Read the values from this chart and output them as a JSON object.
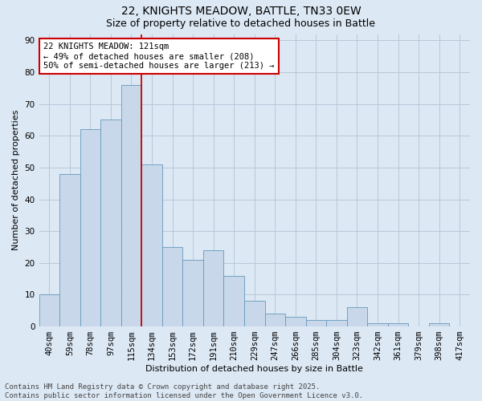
{
  "title1": "22, KNIGHTS MEADOW, BATTLE, TN33 0EW",
  "title2": "Size of property relative to detached houses in Battle",
  "xlabel": "Distribution of detached houses by size in Battle",
  "ylabel": "Number of detached properties",
  "categories": [
    "40sqm",
    "59sqm",
    "78sqm",
    "97sqm",
    "115sqm",
    "134sqm",
    "153sqm",
    "172sqm",
    "191sqm",
    "210sqm",
    "229sqm",
    "247sqm",
    "266sqm",
    "285sqm",
    "304sqm",
    "323sqm",
    "342sqm",
    "361sqm",
    "379sqm",
    "398sqm",
    "417sqm"
  ],
  "values": [
    10,
    48,
    62,
    65,
    76,
    51,
    25,
    21,
    24,
    16,
    8,
    4,
    3,
    2,
    2,
    6,
    1,
    1,
    0,
    1,
    0
  ],
  "bar_color": "#c8d8ea",
  "bar_edge_color": "#6699bb",
  "vline_x": 4.5,
  "vline_color": "#cc0000",
  "annotation_text": "22 KNIGHTS MEADOW: 121sqm\n← 49% of detached houses are smaller (208)\n50% of semi-detached houses are larger (213) →",
  "annotation_box_facecolor": "#ffffff",
  "annotation_border_color": "#cc0000",
  "ylim": [
    0,
    92
  ],
  "yticks": [
    0,
    10,
    20,
    30,
    40,
    50,
    60,
    70,
    80,
    90
  ],
  "grid_color": "#b8c8d8",
  "background_color": "#dce8f4",
  "footer_text": "Contains HM Land Registry data © Crown copyright and database right 2025.\nContains public sector information licensed under the Open Government Licence v3.0.",
  "title_fontsize": 10,
  "subtitle_fontsize": 9,
  "axis_label_fontsize": 8,
  "tick_fontsize": 7.5,
  "annotation_fontsize": 7.5,
  "footer_fontsize": 6.5
}
